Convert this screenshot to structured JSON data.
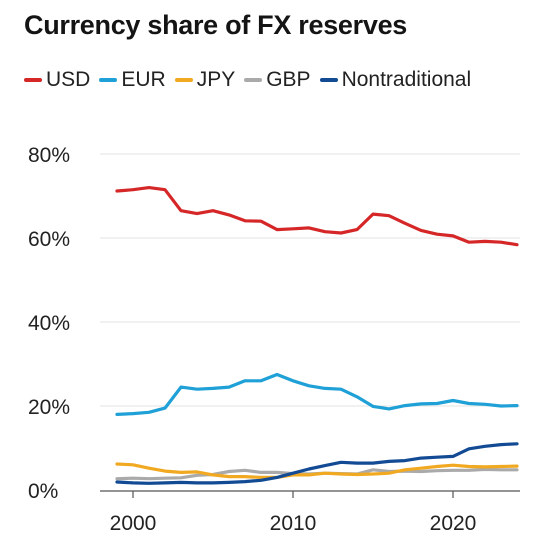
{
  "chart_data": {
    "type": "line",
    "title": "Currency share of FX reserves",
    "xlabel": "",
    "ylabel": "",
    "xlim": [
      1999,
      2024
    ],
    "ylim": [
      0,
      80
    ],
    "x_ticks": [
      2000,
      2010,
      2020
    ],
    "x_tick_labels": [
      "2000",
      "2010",
      "2020"
    ],
    "y_ticks": [
      0,
      20,
      40,
      60,
      80
    ],
    "y_tick_labels": [
      "0%",
      "20%",
      "40%",
      "60%",
      "80%"
    ],
    "grid": "horizontal",
    "legend_position": "top",
    "x": [
      1999,
      2000,
      2001,
      2002,
      2003,
      2004,
      2005,
      2006,
      2007,
      2008,
      2009,
      2010,
      2011,
      2012,
      2013,
      2014,
      2015,
      2016,
      2017,
      2018,
      2019,
      2020,
      2021,
      2022,
      2023,
      2024
    ],
    "series": [
      {
        "name": "USD",
        "color": "#d62728",
        "values": [
          71.2,
          71.5,
          72.0,
          71.5,
          66.5,
          65.8,
          66.5,
          65.5,
          64.1,
          64.0,
          62.0,
          62.2,
          62.4,
          61.5,
          61.2,
          62.0,
          65.7,
          65.3,
          63.5,
          61.8,
          60.9,
          60.5,
          59.0,
          59.2,
          59.0,
          58.4
        ]
      },
      {
        "name": "EUR",
        "color": "#1fa0d6",
        "values": [
          18.0,
          18.2,
          18.5,
          19.5,
          24.5,
          24.0,
          24.2,
          24.5,
          26.0,
          26.0,
          27.5,
          26.0,
          24.8,
          24.2,
          24.0,
          22.2,
          19.9,
          19.3,
          20.1,
          20.5,
          20.6,
          21.3,
          20.6,
          20.4,
          20.0,
          20.1
        ]
      },
      {
        "name": "JPY",
        "color": "#f2a922",
        "values": [
          6.2,
          6.0,
          5.2,
          4.5,
          4.2,
          4.3,
          3.6,
          3.2,
          3.2,
          3.0,
          3.0,
          3.6,
          3.6,
          4.0,
          3.8,
          3.7,
          3.8,
          4.0,
          4.8,
          5.2,
          5.6,
          5.9,
          5.6,
          5.5,
          5.6,
          5.7
        ]
      },
      {
        "name": "GBP",
        "color": "#aaaaaa",
        "values": [
          2.7,
          2.8,
          2.7,
          2.8,
          2.9,
          3.5,
          3.7,
          4.4,
          4.7,
          4.2,
          4.2,
          3.9,
          3.8,
          4.0,
          3.9,
          3.8,
          4.8,
          4.4,
          4.5,
          4.4,
          4.6,
          4.7,
          4.7,
          4.9,
          4.8,
          4.8
        ]
      },
      {
        "name": "Nontraditional",
        "color": "#124a94",
        "values": [
          1.9,
          1.7,
          1.6,
          1.7,
          1.8,
          1.7,
          1.7,
          1.8,
          2.0,
          2.3,
          3.0,
          4.0,
          5.0,
          5.8,
          6.6,
          6.4,
          6.4,
          6.8,
          7.0,
          7.6,
          7.8,
          8.0,
          9.8,
          10.4,
          10.8,
          11.0
        ]
      }
    ]
  }
}
